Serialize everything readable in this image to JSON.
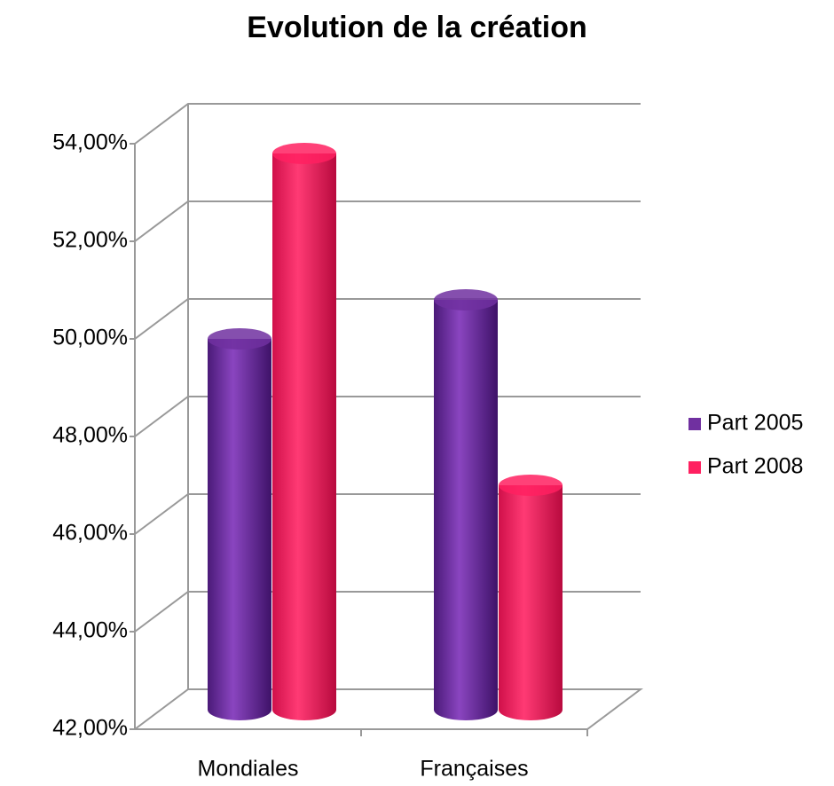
{
  "chart_data": {
    "type": "bar3d",
    "title": "Evolution de la création",
    "categories": [
      "Mondiales",
      "Françaises"
    ],
    "series": [
      {
        "name": "Part 2005",
        "color": "#7030a0",
        "values": [
          49.6,
          50.4
        ]
      },
      {
        "name": "Part 2008",
        "color": "#ff2060",
        "values": [
          53.4,
          46.6
        ]
      }
    ],
    "ylim": [
      42,
      54
    ],
    "yticks": [
      {
        "value": 42,
        "label": "42,00%"
      },
      {
        "value": 44,
        "label": "44,00%"
      },
      {
        "value": 46,
        "label": "46,00%"
      },
      {
        "value": 48,
        "label": "48,00%"
      },
      {
        "value": 50,
        "label": "50,00%"
      },
      {
        "value": 52,
        "label": "52,00%"
      },
      {
        "value": 54,
        "label": "54,00%"
      }
    ],
    "grid": true,
    "legend": "right"
  }
}
